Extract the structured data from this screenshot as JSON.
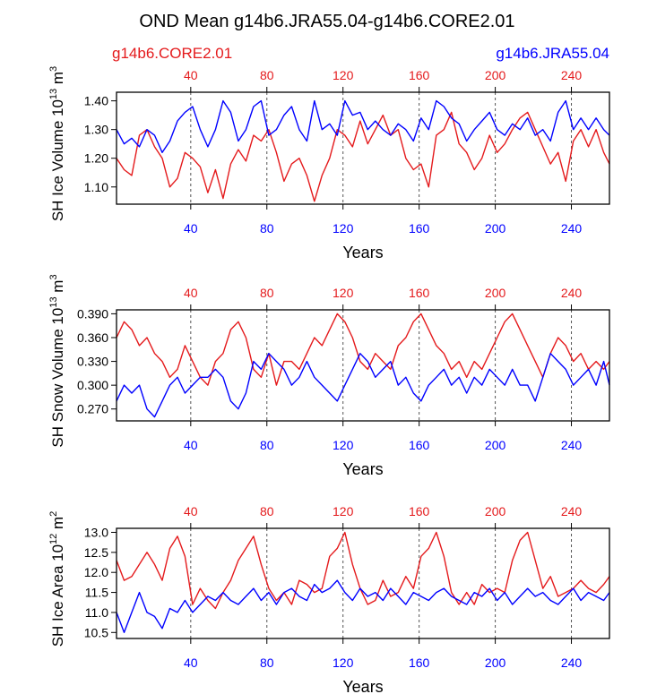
{
  "figure": {
    "title": "OND Mean g14b6.JRA55.04-g14b6.CORE2.01",
    "legend_left": "g14b6.CORE2.01",
    "legend_right": "g14b6.JRA55.04",
    "colors": {
      "core": "#e41a1c",
      "jra": "#0000ff"
    }
  },
  "chart_data": [
    {
      "type": "line",
      "id": "ice-volume",
      "ylabel": "SH Ice Volume",
      "ylabel_exp": "13",
      "ylabel_unit_exp": "3",
      "unit": "m",
      "xlabel": "Years",
      "xlim": [
        1,
        260
      ],
      "ylim": [
        1.04,
        1.43
      ],
      "x_ticks": [
        40,
        80,
        120,
        160,
        200,
        240
      ],
      "y_ticks": [
        "1.10",
        "1.20",
        "1.30",
        "1.40"
      ],
      "series": [
        {
          "name": "g14b6.CORE2.01",
          "color": "#e41a1c",
          "x_step": 4,
          "values": [
            1.2,
            1.16,
            1.14,
            1.28,
            1.3,
            1.24,
            1.2,
            1.1,
            1.13,
            1.22,
            1.2,
            1.17,
            1.08,
            1.16,
            1.06,
            1.18,
            1.23,
            1.19,
            1.28,
            1.26,
            1.3,
            1.22,
            1.12,
            1.18,
            1.2,
            1.14,
            1.05,
            1.14,
            1.2,
            1.3,
            1.28,
            1.24,
            1.33,
            1.25,
            1.3,
            1.35,
            1.28,
            1.3,
            1.2,
            1.16,
            1.18,
            1.1,
            1.28,
            1.3,
            1.36,
            1.25,
            1.22,
            1.16,
            1.2,
            1.28,
            1.22,
            1.25,
            1.3,
            1.34,
            1.36,
            1.3,
            1.24,
            1.18,
            1.22,
            1.12,
            1.26,
            1.3,
            1.24,
            1.3,
            1.22,
            1.18
          ]
        },
        {
          "name": "g14b6.JRA55.04",
          "color": "#0000ff",
          "x_step": 4,
          "values": [
            1.3,
            1.25,
            1.27,
            1.24,
            1.3,
            1.28,
            1.22,
            1.26,
            1.33,
            1.36,
            1.38,
            1.3,
            1.24,
            1.3,
            1.4,
            1.36,
            1.26,
            1.3,
            1.38,
            1.4,
            1.28,
            1.3,
            1.35,
            1.38,
            1.3,
            1.26,
            1.4,
            1.3,
            1.32,
            1.28,
            1.4,
            1.35,
            1.36,
            1.3,
            1.33,
            1.3,
            1.28,
            1.32,
            1.3,
            1.26,
            1.34,
            1.3,
            1.4,
            1.38,
            1.34,
            1.32,
            1.26,
            1.3,
            1.33,
            1.36,
            1.3,
            1.28,
            1.32,
            1.3,
            1.34,
            1.28,
            1.3,
            1.26,
            1.36,
            1.4,
            1.3,
            1.34,
            1.3,
            1.34,
            1.3,
            1.28
          ]
        }
      ]
    },
    {
      "type": "line",
      "id": "snow-volume",
      "ylabel": "SH Snow Volume",
      "ylabel_exp": "13",
      "ylabel_unit_exp": "3",
      "unit": "m",
      "xlabel": "Years",
      "xlim": [
        1,
        260
      ],
      "ylim": [
        0.255,
        0.395
      ],
      "x_ticks": [
        40,
        80,
        120,
        160,
        200,
        240
      ],
      "y_ticks": [
        "0.270",
        "0.300",
        "0.330",
        "0.360",
        "0.390"
      ],
      "series": [
        {
          "name": "g14b6.CORE2.01",
          "color": "#e41a1c",
          "x_step": 4,
          "values": [
            0.36,
            0.38,
            0.37,
            0.35,
            0.36,
            0.34,
            0.33,
            0.31,
            0.32,
            0.35,
            0.33,
            0.31,
            0.3,
            0.33,
            0.34,
            0.37,
            0.38,
            0.36,
            0.32,
            0.31,
            0.34,
            0.3,
            0.33,
            0.33,
            0.32,
            0.34,
            0.36,
            0.35,
            0.37,
            0.39,
            0.38,
            0.36,
            0.33,
            0.32,
            0.34,
            0.33,
            0.32,
            0.35,
            0.36,
            0.38,
            0.39,
            0.37,
            0.35,
            0.34,
            0.32,
            0.33,
            0.31,
            0.33,
            0.32,
            0.34,
            0.36,
            0.38,
            0.39,
            0.37,
            0.35,
            0.33,
            0.31,
            0.34,
            0.36,
            0.35,
            0.33,
            0.34,
            0.32,
            0.33,
            0.32,
            0.33
          ]
        },
        {
          "name": "g14b6.JRA55.04",
          "color": "#0000ff",
          "x_step": 4,
          "values": [
            0.28,
            0.3,
            0.29,
            0.3,
            0.27,
            0.26,
            0.28,
            0.3,
            0.31,
            0.29,
            0.3,
            0.31,
            0.31,
            0.32,
            0.31,
            0.28,
            0.27,
            0.29,
            0.33,
            0.32,
            0.34,
            0.33,
            0.32,
            0.3,
            0.31,
            0.33,
            0.31,
            0.3,
            0.29,
            0.28,
            0.3,
            0.32,
            0.34,
            0.33,
            0.31,
            0.32,
            0.33,
            0.3,
            0.31,
            0.29,
            0.28,
            0.3,
            0.31,
            0.32,
            0.3,
            0.31,
            0.29,
            0.31,
            0.3,
            0.32,
            0.31,
            0.3,
            0.32,
            0.3,
            0.3,
            0.28,
            0.31,
            0.34,
            0.33,
            0.32,
            0.3,
            0.31,
            0.32,
            0.3,
            0.33,
            0.3
          ]
        }
      ]
    },
    {
      "type": "line",
      "id": "ice-area",
      "ylabel": "SH Ice Area",
      "ylabel_exp": "12",
      "ylabel_unit_exp": "2",
      "unit": "m",
      "xlabel": "Years",
      "xlim": [
        1,
        260
      ],
      "ylim": [
        10.35,
        13.1
      ],
      "x_ticks": [
        40,
        80,
        120,
        160,
        200,
        240
      ],
      "y_ticks": [
        "10.5",
        "11.0",
        "11.5",
        "12.0",
        "12.5",
        "13.0"
      ],
      "series": [
        {
          "name": "g14b6.CORE2.01",
          "color": "#e41a1c",
          "x_step": 4,
          "values": [
            12.3,
            11.8,
            11.9,
            12.2,
            12.5,
            12.2,
            11.8,
            12.6,
            12.9,
            12.4,
            11.2,
            11.6,
            11.3,
            11.1,
            11.5,
            11.8,
            12.3,
            12.6,
            12.9,
            12.2,
            11.6,
            11.3,
            11.5,
            11.2,
            11.8,
            11.7,
            11.5,
            11.6,
            12.4,
            12.6,
            13.0,
            12.2,
            11.6,
            11.2,
            11.3,
            11.8,
            11.4,
            11.5,
            11.9,
            11.6,
            12.4,
            12.6,
            13.0,
            12.4,
            11.5,
            11.2,
            11.5,
            11.2,
            11.7,
            11.5,
            11.6,
            11.5,
            12.3,
            12.8,
            13.0,
            12.3,
            11.6,
            11.9,
            11.4,
            11.5,
            11.6,
            11.8,
            11.6,
            11.5,
            11.7,
            11.9
          ]
        },
        {
          "name": "g14b6.JRA55.04",
          "color": "#0000ff",
          "x_step": 4,
          "values": [
            11.0,
            10.5,
            11.0,
            11.5,
            11.0,
            10.9,
            10.6,
            11.1,
            11.0,
            11.3,
            11.0,
            11.2,
            11.4,
            11.3,
            11.5,
            11.3,
            11.2,
            11.4,
            11.6,
            11.3,
            11.5,
            11.2,
            11.5,
            11.6,
            11.4,
            11.3,
            11.7,
            11.5,
            11.6,
            11.8,
            11.5,
            11.3,
            11.6,
            11.4,
            11.5,
            11.3,
            11.6,
            11.4,
            11.2,
            11.5,
            11.4,
            11.3,
            11.5,
            11.6,
            11.4,
            11.3,
            11.2,
            11.5,
            11.4,
            11.6,
            11.3,
            11.5,
            11.2,
            11.4,
            11.6,
            11.4,
            11.5,
            11.3,
            11.2,
            11.4,
            11.6,
            11.3,
            11.5,
            11.4,
            11.3,
            11.5
          ]
        }
      ]
    }
  ]
}
